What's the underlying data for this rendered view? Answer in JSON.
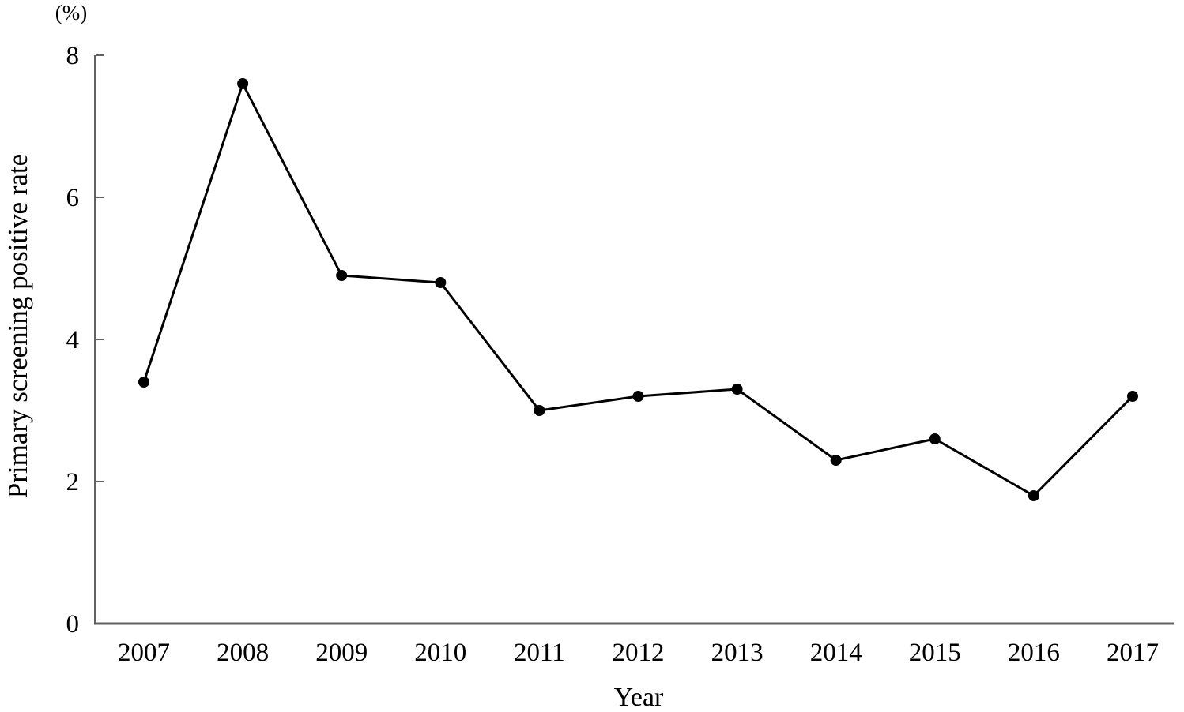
{
  "figure": {
    "kind": "line-chart"
  },
  "chart_data": {
    "type": "line",
    "title": "",
    "xlabel": "Year",
    "ylabel": "Primary screening positive rate",
    "y_unit": "(%)",
    "x": [
      2007,
      2008,
      2009,
      2010,
      2011,
      2012,
      2013,
      2014,
      2015,
      2016,
      2017
    ],
    "series": [
      {
        "name": "Primary screening positive rate",
        "values": [
          3.4,
          7.6,
          4.9,
          4.8,
          3.0,
          3.2,
          3.3,
          2.3,
          2.6,
          1.8,
          3.2
        ]
      }
    ],
    "ylim": [
      0,
      8
    ],
    "yticks": [
      0,
      2,
      4,
      6,
      8
    ],
    "grid": false,
    "legend_position": "none",
    "line_color": "#000000",
    "marker": "circle",
    "marker_color": "#000000",
    "axis_color": "#616161"
  }
}
